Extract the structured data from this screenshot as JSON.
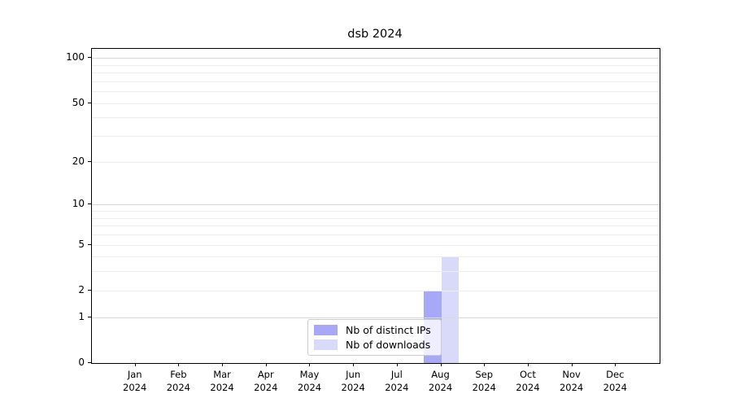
{
  "title": "dsb 2024",
  "chart_data": {
    "type": "bar",
    "title": "dsb 2024",
    "categories": [
      "Jan 2024",
      "Feb 2024",
      "Mar 2024",
      "Apr 2024",
      "May 2024",
      "Jun 2024",
      "Jul 2024",
      "Aug 2024",
      "Sep 2024",
      "Oct 2024",
      "Nov 2024",
      "Dec 2024"
    ],
    "series": [
      {
        "name": "Nb of distinct IPs",
        "color": "#a8a8f8",
        "values": [
          0,
          0,
          0,
          0,
          0,
          0,
          0,
          2,
          0,
          0,
          0,
          0
        ]
      },
      {
        "name": "Nb of downloads",
        "color": "#d9d9f9",
        "values": [
          0,
          0,
          0,
          0,
          0,
          0,
          0,
          4,
          0,
          0,
          0,
          0
        ]
      }
    ],
    "xlabel": "",
    "ylabel": "",
    "yscale": "log1p",
    "ylim": [
      0,
      115
    ],
    "yticks": [
      0,
      1,
      2,
      5,
      10,
      20,
      50,
      100
    ],
    "gridlines_major": [
      1,
      10,
      100
    ],
    "gridlines_minor": [
      2,
      3,
      4,
      5,
      6,
      7,
      8,
      9,
      20,
      30,
      40,
      50,
      60,
      70,
      80,
      90
    ],
    "grid": true,
    "legend_position": "lower center"
  },
  "legend": {
    "items": [
      {
        "label": "Nb of distinct IPs",
        "color": "#a8a8f8"
      },
      {
        "label": "Nb of downloads",
        "color": "#d9d9f9"
      }
    ]
  },
  "colors": {
    "bar_distinct_ips": "#a8a8f8",
    "bar_downloads": "#d9d9f9",
    "grid_major": "#d8d8d8",
    "grid_minor": "#ededed",
    "axis": "#000000",
    "legend_border": "#cccccc"
  }
}
